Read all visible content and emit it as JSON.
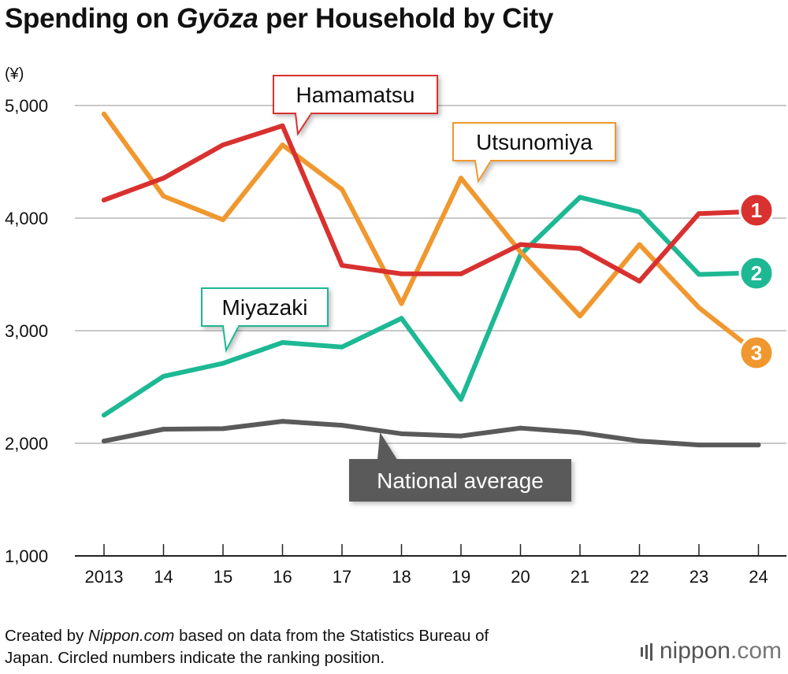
{
  "title": {
    "prefix": "Spending on ",
    "italic": "Gyōza",
    "suffix": " per Household by City"
  },
  "footnote": {
    "line1_prefix": "Created by ",
    "line1_italic": "Nippon.com",
    "line1_suffix": " based on data from the Statistics Bureau of",
    "line2": "Japan. Circled numbers indicate the ranking position."
  },
  "logo": {
    "word": "nippon",
    "dot": ".",
    "tld": "com"
  },
  "colors": {
    "hamamatsu": "#d8312f",
    "utsunomiya": "#f0982f",
    "miyazaki": "#1db894",
    "national": "#5a5a5a",
    "grid": "#c8c8c8",
    "axis": "#222222"
  },
  "chart_data": {
    "type": "line",
    "ylabel": "(¥)",
    "ylim": [
      1000,
      5000
    ],
    "yticks": [
      1000,
      2000,
      3000,
      4000,
      5000
    ],
    "ytick_labels": [
      "1,000",
      "2,000",
      "3,000",
      "4,000",
      "5,000"
    ],
    "categories": [
      "2013",
      "14",
      "15",
      "16",
      "17",
      "18",
      "19",
      "20",
      "21",
      "22",
      "23",
      "24"
    ],
    "grid": true,
    "series": [
      {
        "key": "national",
        "name": "National average",
        "values": [
          2020,
          2125,
          2130,
          2195,
          2160,
          2085,
          2065,
          2135,
          2095,
          2020,
          1985,
          1985
        ]
      },
      {
        "key": "miyazaki",
        "name": "Miyazaki",
        "rank": "2",
        "values": [
          2250,
          2595,
          2710,
          2895,
          2855,
          3110,
          2390,
          3675,
          4185,
          4055,
          3500,
          3515
        ]
      },
      {
        "key": "utsunomiya",
        "name": "Utsunomiya",
        "rank": "3",
        "values": [
          4925,
          4195,
          3985,
          4650,
          4255,
          3240,
          4355,
          3700,
          3130,
          3765,
          3205,
          2790
        ]
      },
      {
        "key": "hamamatsu",
        "name": "Hamamatsu",
        "rank": "1",
        "values": [
          4160,
          4355,
          4650,
          4820,
          3580,
          3505,
          3505,
          3765,
          3730,
          3440,
          4040,
          4060
        ]
      }
    ]
  }
}
